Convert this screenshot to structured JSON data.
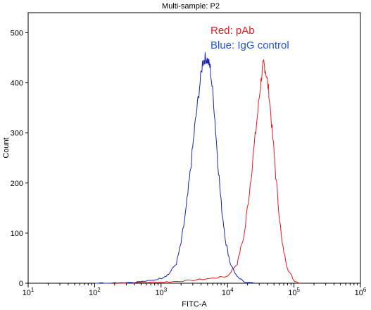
{
  "chart_data": {
    "type": "line",
    "title": "Multi-sample: P2",
    "xlabel": "FITC-A",
    "ylabel": "Count",
    "x_scale": "log",
    "xlim": [
      10,
      1000000
    ],
    "ylim": [
      0,
      540
    ],
    "x_ticks": [
      {
        "value": 10,
        "base": "10",
        "exp": "1"
      },
      {
        "value": 100,
        "base": "10",
        "exp": "2"
      },
      {
        "value": 1000,
        "base": "10",
        "exp": "3"
      },
      {
        "value": 10000,
        "base": "10",
        "exp": "4"
      },
      {
        "value": 100000,
        "base": "10",
        "exp": "5"
      },
      {
        "value": 1000000,
        "base": "10",
        "exp": "6"
      }
    ],
    "y_ticks": [
      "0",
      "100",
      "200",
      "300",
      "400",
      "500"
    ],
    "y_tick_values": [
      0,
      100,
      200,
      300,
      400,
      500
    ],
    "annotations": [
      {
        "text": "Red: pAb",
        "color": "#e8191c"
      },
      {
        "text": "Blue: IgG control",
        "color": "#2255e0"
      }
    ],
    "series": [
      {
        "color": "#e8191c",
        "x": [
          200,
          400,
          800,
          1500,
          3000,
          6000,
          10000,
          14000,
          18000,
          22000,
          26000,
          30000,
          33000,
          35000,
          38000,
          42000,
          48000,
          56000,
          66000,
          80000,
          100000,
          125000
        ],
        "y": [
          0,
          1,
          2,
          3,
          6,
          10,
          14,
          40,
          100,
          200,
          290,
          370,
          420,
          440,
          420,
          380,
          290,
          180,
          80,
          30,
          5,
          0
        ]
      },
      {
        "color": "#1a24b0",
        "x": [
          100,
          200,
          400,
          700,
          1000,
          1300,
          1700,
          2000,
          2400,
          2800,
          3200,
          3700,
          4200,
          4600,
          5000,
          5500,
          6200,
          7000,
          8000,
          9500,
          11000,
          14000,
          18000,
          25000
        ],
        "y": [
          0,
          1,
          2,
          5,
          10,
          18,
          40,
          80,
          150,
          230,
          310,
          380,
          440,
          450,
          445,
          430,
          360,
          260,
          160,
          80,
          40,
          12,
          3,
          0
        ]
      }
    ]
  }
}
